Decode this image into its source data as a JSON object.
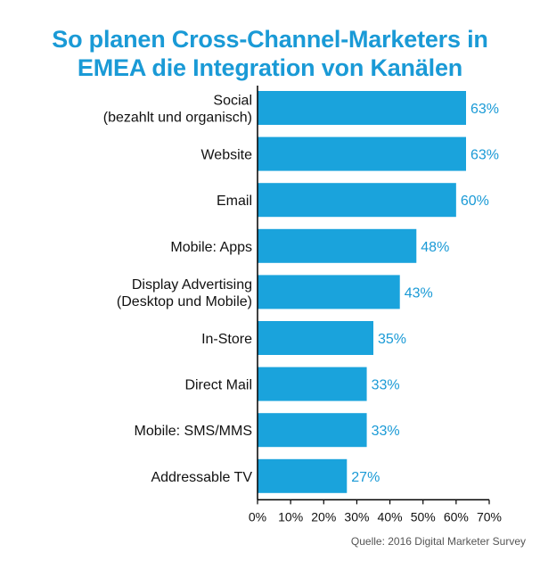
{
  "title_lines": [
    "So planen Cross-Channel-Marketers in",
    "EMEA die Integration von Kanälen"
  ],
  "source": "Quelle: 2016 Digital Marketer Survey",
  "colors": {
    "bar": "#1aa3dc",
    "value_label": "#1a9ad6",
    "title": "#1a9ad6",
    "axis": "#000000",
    "text": "#111111"
  },
  "chart_data": {
    "type": "bar",
    "orientation": "horizontal",
    "title": "So planen Cross-Channel-Marketers in EMEA die Integration von Kanälen",
    "categories": [
      [
        "Social",
        "(bezahlt und organisch)"
      ],
      [
        "Website"
      ],
      [
        "Email"
      ],
      [
        "Mobile: Apps"
      ],
      [
        "Display Advertising",
        "(Desktop und Mobile)"
      ],
      [
        "In-Store"
      ],
      [
        "Direct Mail"
      ],
      [
        "Mobile: SMS/MMS"
      ],
      [
        "Addressable TV"
      ]
    ],
    "values": [
      63,
      63,
      60,
      48,
      43,
      35,
      33,
      33,
      27
    ],
    "value_labels": [
      "63%",
      "63%",
      "60%",
      "48%",
      "43%",
      "35%",
      "33%",
      "33%",
      "27%"
    ],
    "xlim": [
      0,
      70
    ],
    "xticks": [
      "0%",
      "10%",
      "20%",
      "30%",
      "40%",
      "50%",
      "60%",
      "70%"
    ],
    "grid": false,
    "legend": "none"
  }
}
